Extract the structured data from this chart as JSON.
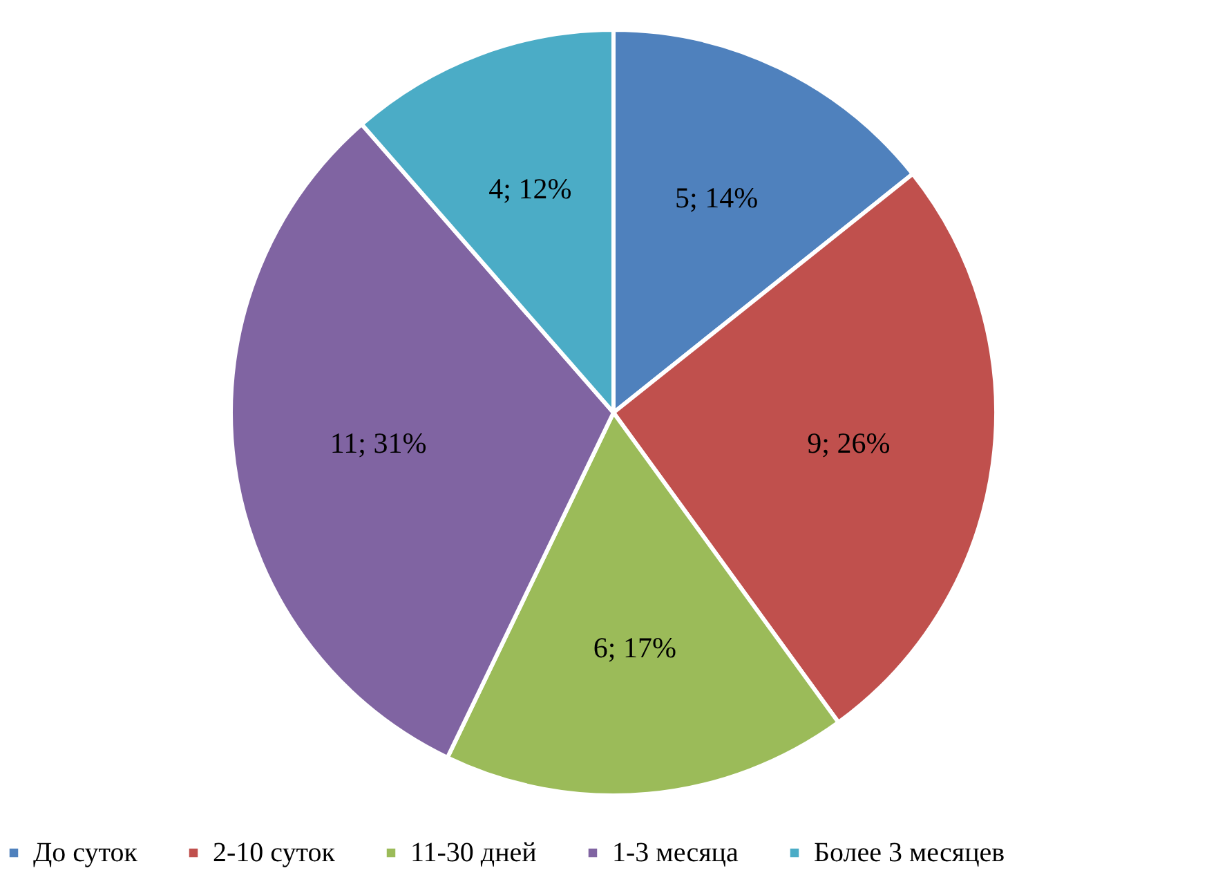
{
  "chart_data": {
    "type": "pie",
    "categories": [
      "До суток",
      "2-10 суток",
      "11-30 дней",
      "1-3 месяца",
      "Более 3 месяцев"
    ],
    "values": [
      5,
      9,
      6,
      11,
      4
    ],
    "value_labels": [
      "5; 14%",
      "9; 26%",
      "6; 17%",
      "11; 31%",
      "4; 12%"
    ],
    "colors": [
      "#4f81bd",
      "#c0504d",
      "#9bbb59",
      "#8064a2",
      "#4bacc6"
    ],
    "legend": "bottom"
  }
}
